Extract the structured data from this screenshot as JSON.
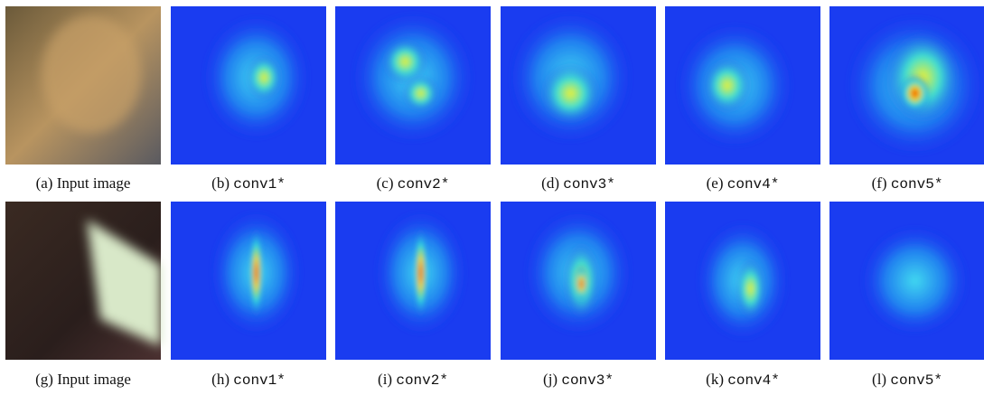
{
  "figure": {
    "rows": [
      {
        "panels": [
          {
            "label": "(a)",
            "name": "Input image"
          },
          {
            "label": "(b)",
            "name": "conv1*"
          },
          {
            "label": "(c)",
            "name": "conv2*"
          },
          {
            "label": "(d)",
            "name": "conv3*"
          },
          {
            "label": "(e)",
            "name": "conv4*"
          },
          {
            "label": "(f)",
            "name": "conv5*"
          }
        ]
      },
      {
        "panels": [
          {
            "label": "(g)",
            "name": "Input image"
          },
          {
            "label": "(h)",
            "name": "conv1*"
          },
          {
            "label": "(i)",
            "name": "conv2*"
          },
          {
            "label": "(j)",
            "name": "conv3*"
          },
          {
            "label": "(k)",
            "name": "conv4*"
          },
          {
            "label": "(l)",
            "name": "conv5*"
          }
        ]
      }
    ]
  }
}
